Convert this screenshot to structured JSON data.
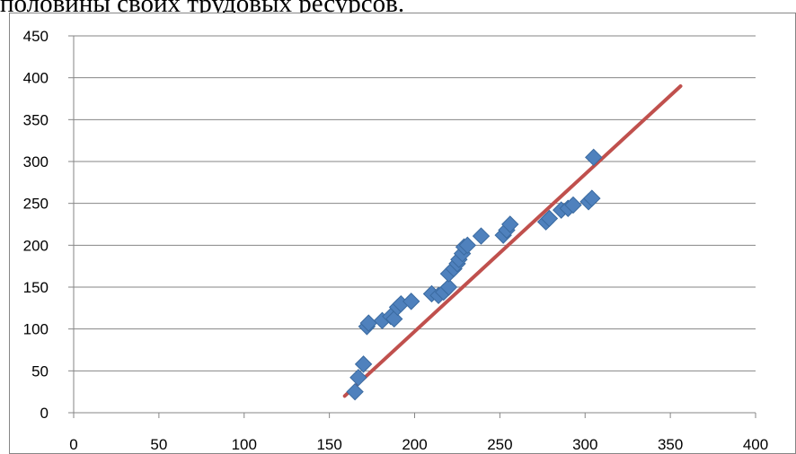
{
  "document": {
    "top_text": "половины своих трудовых ресурсов."
  },
  "colors": {
    "marker": "#4f81bd",
    "marker_edge": "#3a6aa0",
    "line": "#c0504d",
    "grid": "#868686"
  },
  "chart_data": {
    "type": "scatter",
    "xlim": [
      0,
      400
    ],
    "ylim": [
      0,
      450
    ],
    "xticks": [
      0,
      50,
      100,
      150,
      200,
      250,
      300,
      350,
      400
    ],
    "yticks": [
      0,
      50,
      100,
      150,
      200,
      250,
      300,
      350,
      400,
      450
    ],
    "grid": "horizontal",
    "legend": "none",
    "series": [
      {
        "marker": "diamond",
        "points": [
          [
            165,
            25
          ],
          [
            167,
            42
          ],
          [
            170,
            58
          ],
          [
            172,
            103
          ],
          [
            173,
            107
          ],
          [
            181,
            110
          ],
          [
            186,
            115
          ],
          [
            188,
            112
          ],
          [
            190,
            126
          ],
          [
            192,
            130
          ],
          [
            198,
            133
          ],
          [
            210,
            142
          ],
          [
            214,
            140
          ],
          [
            217,
            144
          ],
          [
            220,
            150
          ],
          [
            220,
            166
          ],
          [
            223,
            172
          ],
          [
            225,
            178
          ],
          [
            226,
            183
          ],
          [
            228,
            190
          ],
          [
            229,
            198
          ],
          [
            231,
            200
          ],
          [
            239,
            211
          ],
          [
            252,
            212
          ],
          [
            254,
            218
          ],
          [
            256,
            225
          ],
          [
            277,
            228
          ],
          [
            279,
            232
          ],
          [
            286,
            242
          ],
          [
            290,
            244
          ],
          [
            293,
            248
          ],
          [
            302,
            252
          ],
          [
            304,
            256
          ],
          [
            305,
            305
          ]
        ]
      },
      {
        "type": "line",
        "points": [
          [
            159,
            20
          ],
          [
            356,
            390
          ]
        ]
      }
    ]
  }
}
